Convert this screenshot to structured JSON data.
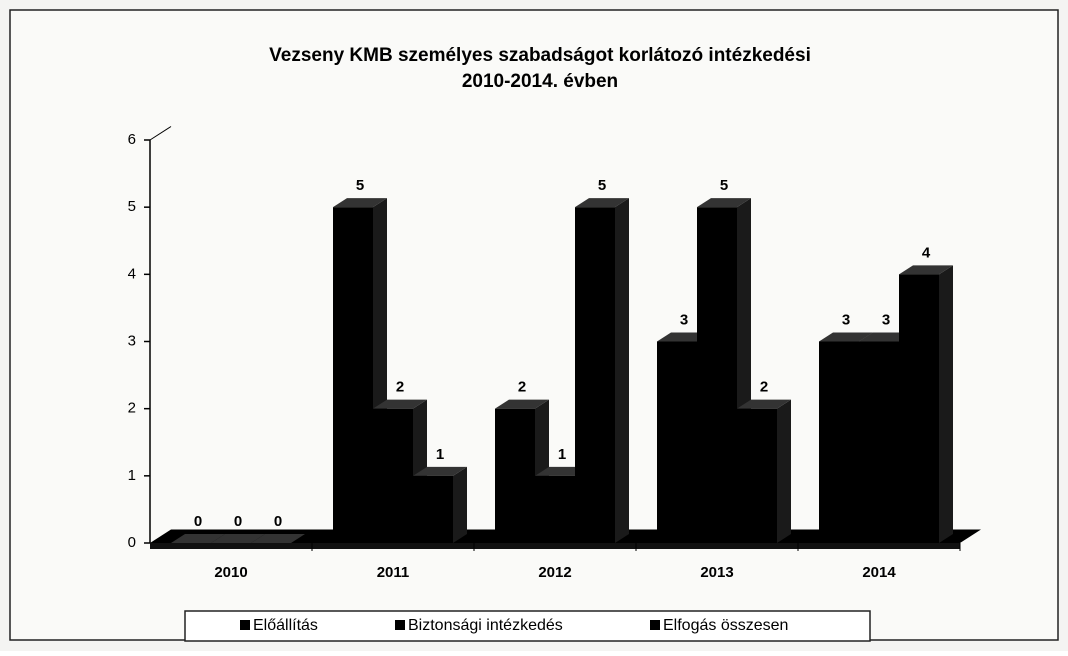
{
  "chart_data": {
    "type": "bar3d",
    "title": [
      "Vezseny KMB személyes szabadságot korlátozó intézkedési",
      "2010-2014. évben"
    ],
    "categories": [
      "2010",
      "2011",
      "2012",
      "2013",
      "2014"
    ],
    "series": [
      {
        "name": "Előállítás",
        "color": "#000000",
        "values": [
          0,
          5,
          2,
          3,
          3
        ]
      },
      {
        "name": "Biztonsági intézkedés",
        "color": "#000000",
        "values": [
          0,
          2,
          1,
          5,
          3
        ]
      },
      {
        "name": "Elfogás összesen",
        "color": "#000000",
        "values": [
          0,
          1,
          5,
          2,
          4
        ]
      }
    ],
    "ylim": [
      0,
      6
    ],
    "yticks": [
      0,
      1,
      2,
      3,
      4,
      5,
      6
    ],
    "grid": false,
    "legend": "bottom"
  }
}
